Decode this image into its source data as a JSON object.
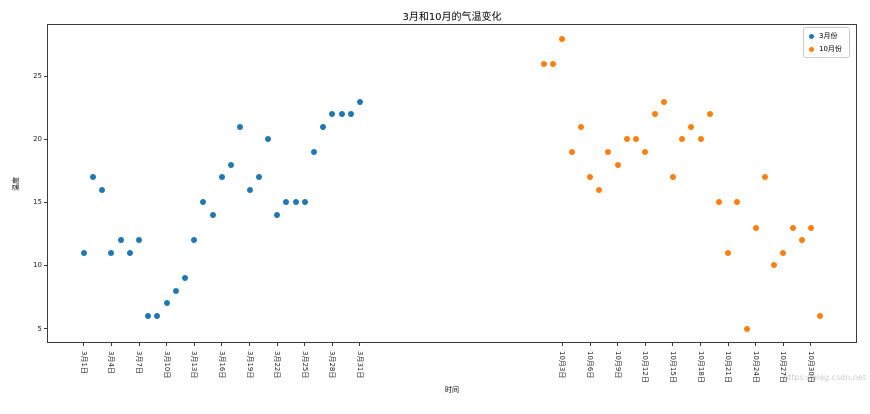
{
  "watermark": "https://blog.csdn.net",
  "chart_data": {
    "type": "scatter",
    "title": "3月和10月的气温变化",
    "xlabel": "时间",
    "ylabel": "温度",
    "grid": false,
    "legend_position": "upper right",
    "xlim": [
      -3,
      85
    ],
    "ylim": [
      3.85,
      29.15
    ],
    "y_ticks": [
      5,
      10,
      15,
      20,
      25
    ],
    "x_ticks": [
      {
        "pos": 1,
        "label": "3月1日"
      },
      {
        "pos": 4,
        "label": "3月4日"
      },
      {
        "pos": 7,
        "label": "3月7日"
      },
      {
        "pos": 10,
        "label": "3月10日"
      },
      {
        "pos": 13,
        "label": "3月13日"
      },
      {
        "pos": 16,
        "label": "3月16日"
      },
      {
        "pos": 19,
        "label": "3月19日"
      },
      {
        "pos": 22,
        "label": "3月22日"
      },
      {
        "pos": 25,
        "label": "3月25日"
      },
      {
        "pos": 28,
        "label": "3月28日"
      },
      {
        "pos": 31,
        "label": "3月31日"
      },
      {
        "pos": 53,
        "label": "10月3日"
      },
      {
        "pos": 56,
        "label": "10月6日"
      },
      {
        "pos": 59,
        "label": "10月9日"
      },
      {
        "pos": 62,
        "label": "10月12日"
      },
      {
        "pos": 65,
        "label": "10月15日"
      },
      {
        "pos": 68,
        "label": "10月18日"
      },
      {
        "pos": 71,
        "label": "10月21日"
      },
      {
        "pos": 74,
        "label": "10月24日"
      },
      {
        "pos": 77,
        "label": "10月27日"
      },
      {
        "pos": 80,
        "label": "10月30日"
      }
    ],
    "series": [
      {
        "name": "3月份",
        "color": "#1f77b4",
        "x": [
          1,
          2,
          3,
          4,
          5,
          6,
          7,
          8,
          9,
          10,
          11,
          12,
          13,
          14,
          15,
          16,
          17,
          18,
          19,
          20,
          21,
          22,
          23,
          24,
          25,
          26,
          27,
          28,
          29,
          30,
          31
        ],
        "y": [
          11,
          17,
          16,
          11,
          12,
          11,
          12,
          6,
          6,
          7,
          8,
          9,
          12,
          15,
          14,
          17,
          18,
          21,
          16,
          17,
          20,
          14,
          15,
          15,
          15,
          19,
          21,
          22,
          22,
          22,
          23
        ]
      },
      {
        "name": "10月份",
        "color": "#ff7f0e",
        "x": [
          51,
          52,
          53,
          54,
          55,
          56,
          57,
          58,
          59,
          60,
          61,
          62,
          63,
          64,
          65,
          66,
          67,
          68,
          69,
          70,
          71,
          72,
          73,
          74,
          75,
          76,
          77,
          78,
          79,
          80,
          81
        ],
        "y": [
          26,
          26,
          28,
          19,
          21,
          17,
          16,
          19,
          18,
          20,
          20,
          19,
          22,
          23,
          17,
          20,
          21,
          20,
          22,
          15,
          11,
          15,
          5,
          13,
          17,
          10,
          11,
          13,
          12,
          13,
          6
        ]
      }
    ]
  }
}
